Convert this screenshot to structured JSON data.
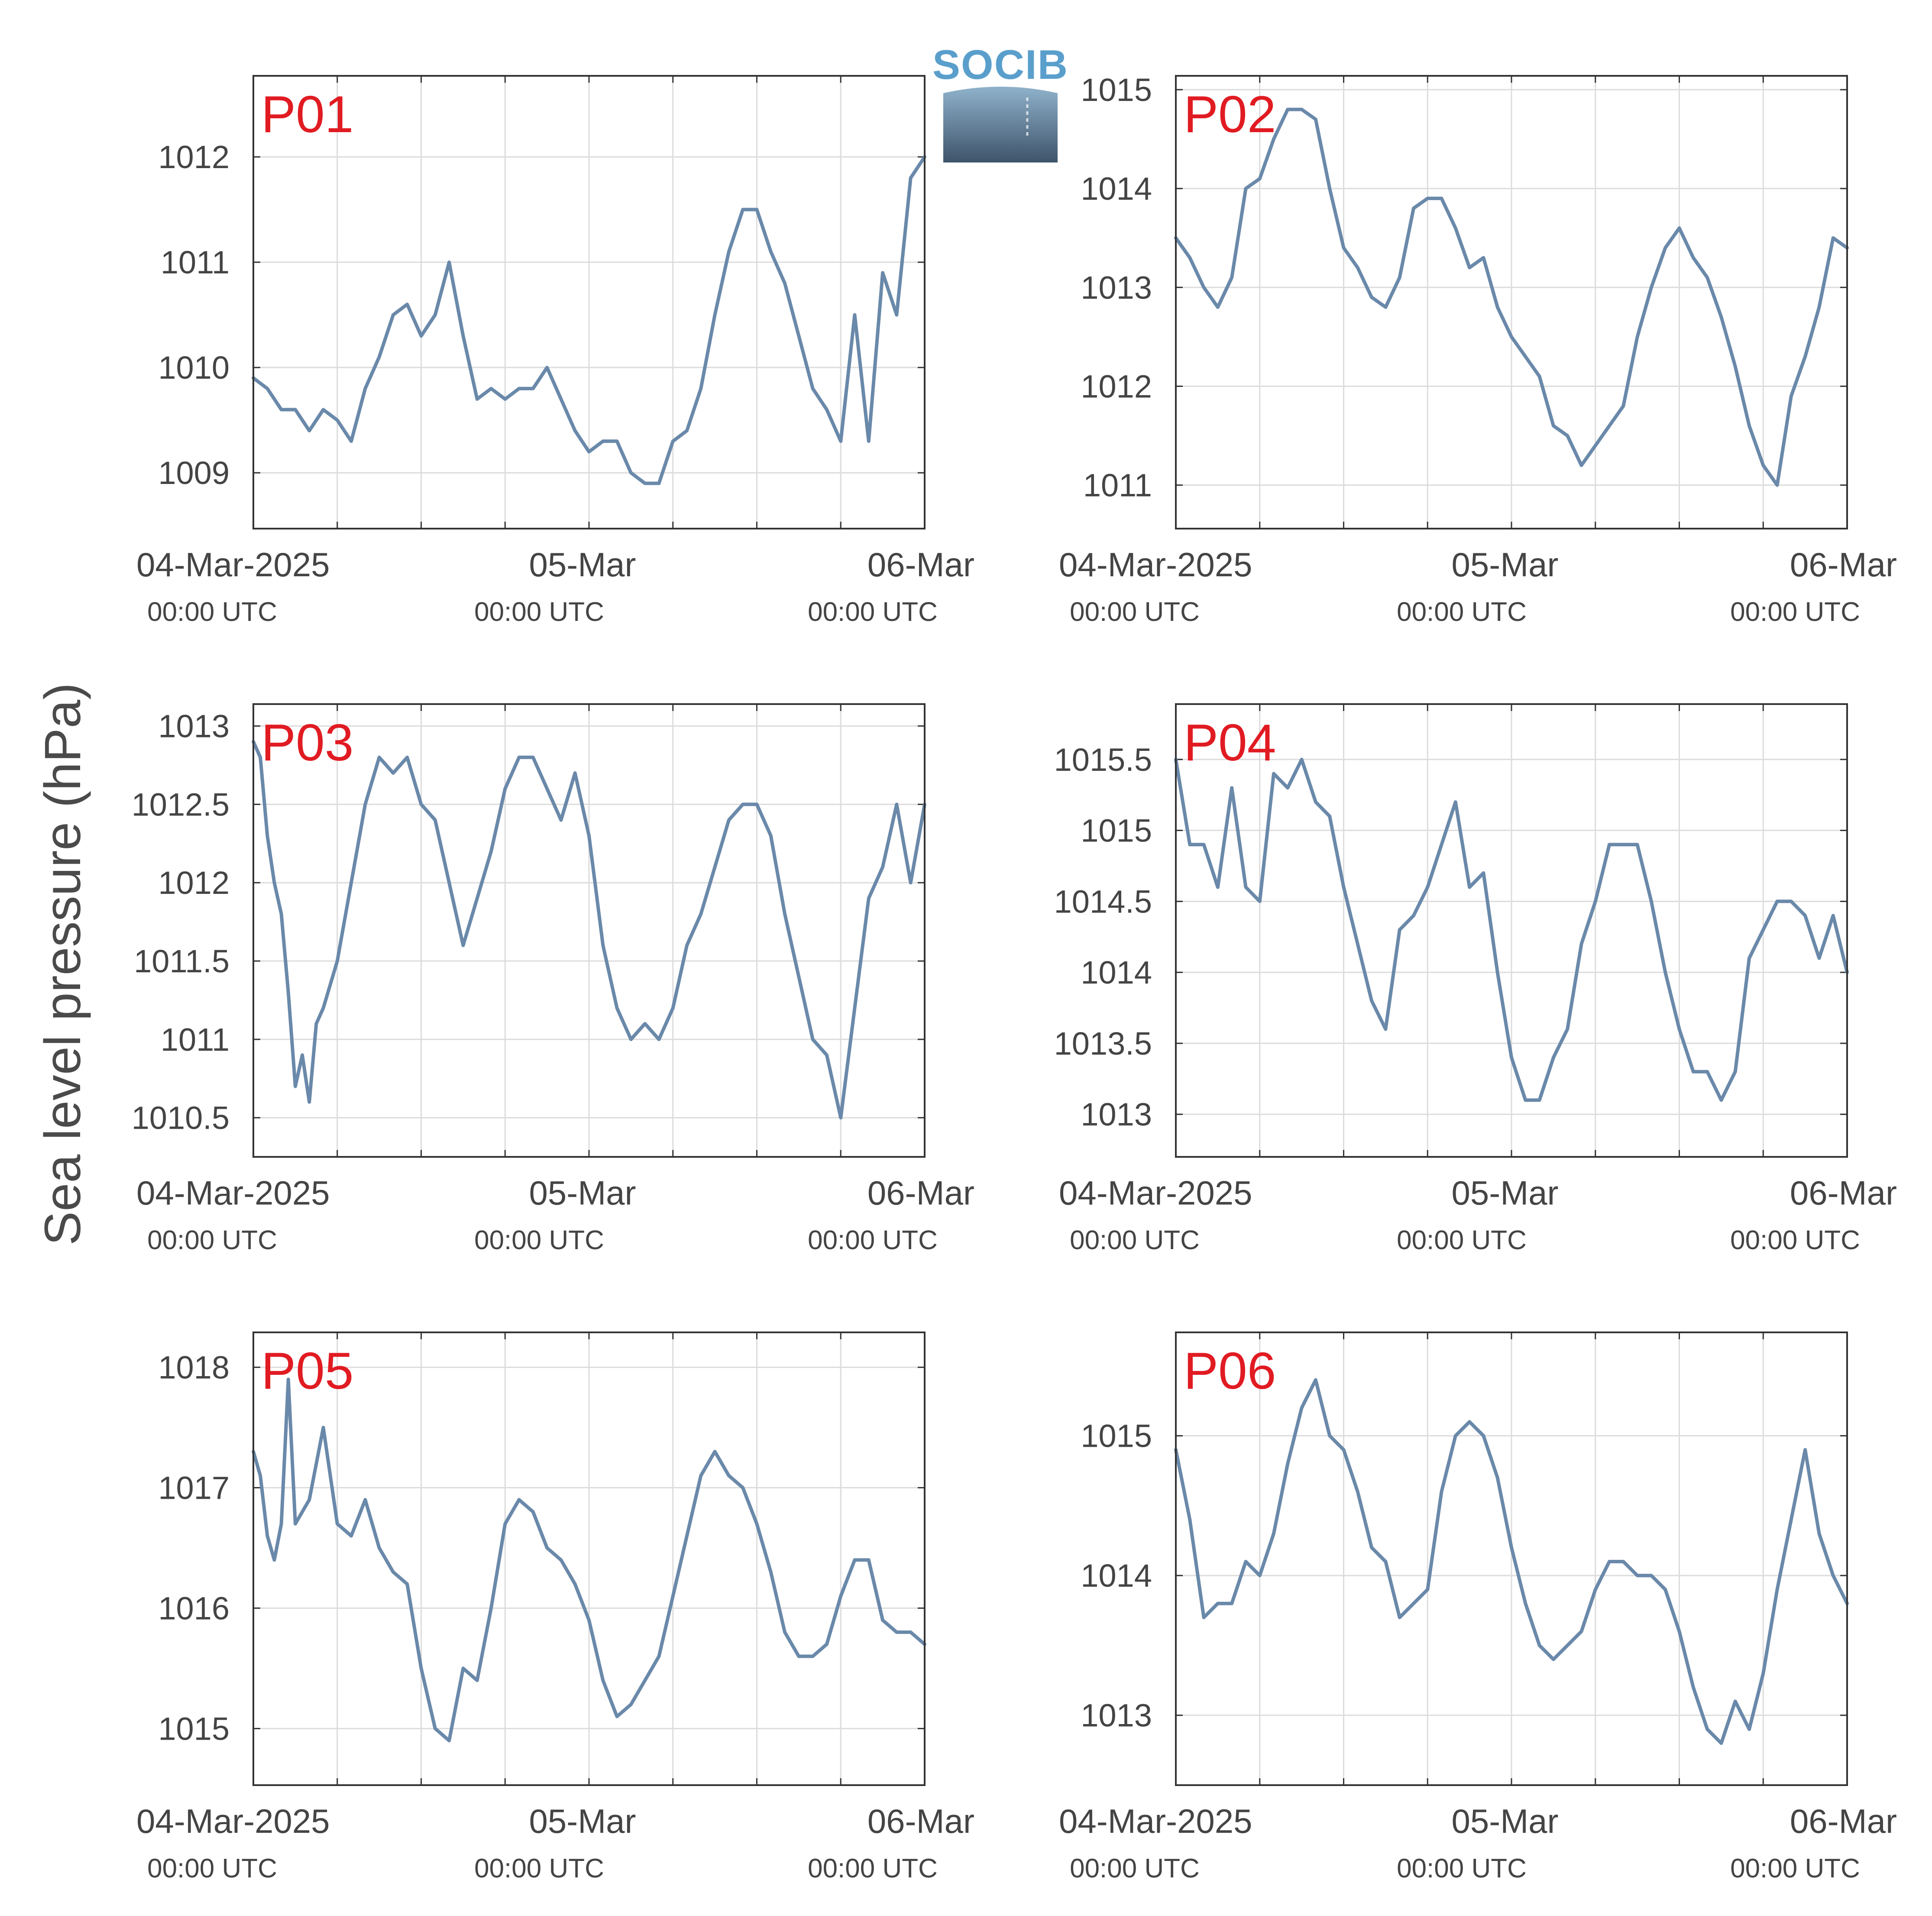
{
  "figure": {
    "ylabel": "Sea level pressure (hPa)",
    "logo_text": "SOCIB",
    "line_color": "#6a89aa",
    "panel_label_color": "#e11b22",
    "grid": true
  },
  "chart_data": [
    {
      "type": "line",
      "title": "P01",
      "x_unit": "hours since 04-Mar-2025 00:00 UTC",
      "xlim": [
        0,
        48
      ],
      "x_ticks": [
        {
          "date": "04-Mar-2025",
          "time": "00:00 UTC"
        },
        {
          "date": "05-Mar",
          "time": "00:00 UTC"
        },
        {
          "date": "06-Mar",
          "time": "00:00 UTC"
        }
      ],
      "ylim": [
        1008.47,
        1012.77
      ],
      "yticks": [
        1009,
        1010,
        1011,
        1012
      ],
      "ytick_labels": [
        "1009",
        "1010",
        "1011",
        "1012"
      ],
      "series": [
        {
          "x": [
            0,
            1,
            2,
            3,
            4,
            5,
            6,
            7,
            8,
            9,
            10,
            11,
            12,
            13,
            14,
            15,
            16,
            17,
            18,
            19,
            20,
            21,
            22,
            23,
            24,
            25,
            26,
            27,
            28,
            29,
            30,
            31,
            32,
            33,
            34,
            35,
            36,
            37,
            38,
            39,
            40,
            41,
            42,
            43,
            44,
            45,
            46,
            47,
            48
          ],
          "values": [
            1009.9,
            1009.8,
            1009.6,
            1009.6,
            1009.4,
            1009.6,
            1009.5,
            1009.3,
            1009.8,
            1010.1,
            1010.5,
            1010.6,
            1010.3,
            1010.5,
            1011.0,
            1010.3,
            1009.7,
            1009.8,
            1009.7,
            1009.8,
            1009.8,
            1010.0,
            1009.7,
            1009.4,
            1009.2,
            1009.3,
            1009.3,
            1009.0,
            1008.9,
            1008.9,
            1009.3,
            1009.4,
            1009.8,
            1010.5,
            1011.1,
            1011.5,
            1011.5,
            1011.1,
            1010.8,
            1010.3,
            1009.8,
            1009.6,
            1009.3,
            1010.5,
            1009.3,
            1010.9,
            1010.5,
            1011.8,
            1012.0
          ]
        }
      ]
    },
    {
      "type": "line",
      "title": "P02",
      "x_unit": "hours since 04-Mar-2025 00:00 UTC",
      "xlim": [
        0,
        48
      ],
      "x_ticks": [
        {
          "date": "04-Mar-2025",
          "time": "00:00 UTC"
        },
        {
          "date": "05-Mar",
          "time": "00:00 UTC"
        },
        {
          "date": "06-Mar",
          "time": "00:00 UTC"
        }
      ],
      "ylim": [
        1010.56,
        1015.14
      ],
      "yticks": [
        1011,
        1012,
        1013,
        1014,
        1015
      ],
      "ytick_labels": [
        "1011",
        "1012",
        "1013",
        "1014",
        "1015"
      ],
      "series": [
        {
          "x": [
            0,
            1,
            2,
            3,
            4,
            5,
            6,
            7,
            8,
            9,
            10,
            11,
            12,
            13,
            14,
            15,
            16,
            17,
            18,
            19,
            20,
            21,
            22,
            23,
            24,
            25,
            26,
            27,
            28,
            29,
            30,
            31,
            32,
            33,
            34,
            35,
            36,
            37,
            38,
            39,
            40,
            41,
            42,
            43,
            44,
            45,
            46,
            47,
            48
          ],
          "values": [
            1013.5,
            1013.3,
            1013.0,
            1012.8,
            1013.1,
            1014.0,
            1014.1,
            1014.5,
            1014.8,
            1014.8,
            1014.7,
            1014.0,
            1013.4,
            1013.2,
            1012.9,
            1012.8,
            1013.1,
            1013.8,
            1013.9,
            1013.9,
            1013.6,
            1013.2,
            1013.3,
            1012.8,
            1012.5,
            1012.3,
            1012.1,
            1011.6,
            1011.5,
            1011.2,
            1011.4,
            1011.6,
            1011.8,
            1012.5,
            1013.0,
            1013.4,
            1013.6,
            1013.3,
            1013.1,
            1012.7,
            1012.2,
            1011.6,
            1011.2,
            1011.0,
            1011.9,
            1012.3,
            1012.8,
            1013.5,
            1013.4
          ]
        }
      ]
    },
    {
      "type": "line",
      "title": "P03",
      "x_unit": "hours since 04-Mar-2025 00:00 UTC",
      "xlim": [
        0,
        48
      ],
      "x_ticks": [
        {
          "date": "04-Mar-2025",
          "time": "00:00 UTC"
        },
        {
          "date": "05-Mar",
          "time": "00:00 UTC"
        },
        {
          "date": "06-Mar",
          "time": "00:00 UTC"
        }
      ],
      "ylim": [
        1010.25,
        1013.14
      ],
      "yticks": [
        1010.5,
        1011,
        1011.5,
        1012,
        1012.5,
        1013
      ],
      "ytick_labels": [
        "1010.5",
        "1011",
        "1011.5",
        "1012",
        "1012.5",
        "1013"
      ],
      "series": [
        {
          "x": [
            0,
            0.5,
            1,
            1.5,
            2,
            2.5,
            3,
            3.5,
            4,
            4.5,
            5,
            6,
            7,
            8,
            9,
            10,
            11,
            12,
            13,
            14,
            15,
            16,
            17,
            18,
            19,
            20,
            21,
            22,
            23,
            24,
            25,
            26,
            27,
            28,
            29,
            30,
            31,
            32,
            33,
            34,
            35,
            36,
            37,
            38,
            39,
            40,
            41,
            42,
            43,
            44,
            45,
            46,
            47,
            48
          ],
          "values": [
            1012.9,
            1012.8,
            1012.3,
            1012.0,
            1011.8,
            1011.3,
            1010.7,
            1010.9,
            1010.6,
            1011.1,
            1011.2,
            1011.5,
            1012.0,
            1012.5,
            1012.8,
            1012.7,
            1012.8,
            1012.5,
            1012.4,
            1012.0,
            1011.6,
            1011.9,
            1012.2,
            1012.6,
            1012.8,
            1012.8,
            1012.6,
            1012.4,
            1012.7,
            1012.3,
            1011.6,
            1011.2,
            1011.0,
            1011.1,
            1011.0,
            1011.2,
            1011.6,
            1011.8,
            1012.1,
            1012.4,
            1012.5,
            1012.5,
            1012.3,
            1011.8,
            1011.4,
            1011.0,
            1010.9,
            1010.5,
            1011.2,
            1011.9,
            1012.1,
            1012.5,
            1012.0,
            1012.5
          ]
        }
      ]
    },
    {
      "type": "line",
      "title": "P04",
      "x_unit": "hours since 04-Mar-2025 00:00 UTC",
      "xlim": [
        0,
        48
      ],
      "x_ticks": [
        {
          "date": "04-Mar-2025",
          "time": "00:00 UTC"
        },
        {
          "date": "05-Mar",
          "time": "00:00 UTC"
        },
        {
          "date": "06-Mar",
          "time": "00:00 UTC"
        }
      ],
      "ylim": [
        1012.7,
        1015.89
      ],
      "yticks": [
        1013,
        1013.5,
        1014,
        1014.5,
        1015,
        1015.5
      ],
      "ytick_labels": [
        "1013",
        "1013.5",
        "1014",
        "1014.5",
        "1015",
        "1015.5"
      ],
      "series": [
        {
          "x": [
            0,
            1,
            2,
            3,
            4,
            5,
            6,
            7,
            8,
            9,
            10,
            11,
            12,
            13,
            14,
            15,
            16,
            17,
            18,
            19,
            20,
            21,
            22,
            23,
            24,
            25,
            26,
            27,
            28,
            29,
            30,
            31,
            32,
            33,
            34,
            35,
            36,
            37,
            38,
            39,
            40,
            41,
            42,
            43,
            44,
            45,
            46,
            47,
            48
          ],
          "values": [
            1015.5,
            1014.9,
            1014.9,
            1014.6,
            1015.3,
            1014.6,
            1014.5,
            1015.4,
            1015.3,
            1015.5,
            1015.2,
            1015.1,
            1014.6,
            1014.2,
            1013.8,
            1013.6,
            1014.3,
            1014.4,
            1014.6,
            1014.9,
            1015.2,
            1014.6,
            1014.7,
            1014.0,
            1013.4,
            1013.1,
            1013.1,
            1013.4,
            1013.6,
            1014.2,
            1014.5,
            1014.9,
            1014.9,
            1014.9,
            1014.5,
            1014.0,
            1013.6,
            1013.3,
            1013.3,
            1013.1,
            1013.3,
            1014.1,
            1014.3,
            1014.5,
            1014.5,
            1014.4,
            1014.1,
            1014.4,
            1014.0
          ]
        }
      ]
    },
    {
      "type": "line",
      "title": "P05",
      "x_unit": "hours since 04-Mar-2025 00:00 UTC",
      "xlim": [
        0,
        48
      ],
      "x_ticks": [
        {
          "date": "04-Mar-2025",
          "time": "00:00 UTC"
        },
        {
          "date": "05-Mar",
          "time": "00:00 UTC"
        },
        {
          "date": "06-Mar",
          "time": "00:00 UTC"
        }
      ],
      "ylim": [
        1014.53,
        1018.29
      ],
      "yticks": [
        1015,
        1016,
        1017,
        1018
      ],
      "ytick_labels": [
        "1015",
        "1016",
        "1017",
        "1018"
      ],
      "series": [
        {
          "x": [
            0,
            0.5,
            1,
            1.5,
            2,
            2.5,
            3,
            4,
            5,
            6,
            7,
            8,
            9,
            10,
            11,
            12,
            13,
            14,
            15,
            16,
            17,
            18,
            19,
            20,
            21,
            22,
            23,
            24,
            25,
            26,
            27,
            28,
            29,
            30,
            31,
            32,
            33,
            34,
            35,
            36,
            37,
            38,
            39,
            40,
            41,
            42,
            43,
            44,
            45,
            46,
            47,
            48
          ],
          "values": [
            1017.3,
            1017.1,
            1016.6,
            1016.4,
            1016.7,
            1017.9,
            1016.7,
            1016.9,
            1017.5,
            1016.7,
            1016.6,
            1016.9,
            1016.5,
            1016.3,
            1016.2,
            1015.5,
            1015.0,
            1014.9,
            1015.5,
            1015.4,
            1016.0,
            1016.7,
            1016.9,
            1016.8,
            1016.5,
            1016.4,
            1016.2,
            1015.9,
            1015.4,
            1015.1,
            1015.2,
            1015.4,
            1015.6,
            1016.1,
            1016.6,
            1017.1,
            1017.3,
            1017.1,
            1017.0,
            1016.7,
            1016.3,
            1015.8,
            1015.6,
            1015.6,
            1015.7,
            1016.1,
            1016.4,
            1016.4,
            1015.9,
            1015.8,
            1015.8,
            1015.7
          ]
        }
      ]
    },
    {
      "type": "line",
      "title": "P06",
      "x_unit": "hours since 04-Mar-2025 00:00 UTC",
      "xlim": [
        0,
        48
      ],
      "x_ticks": [
        {
          "date": "04-Mar-2025",
          "time": "00:00 UTC"
        },
        {
          "date": "05-Mar",
          "time": "00:00 UTC"
        },
        {
          "date": "06-Mar",
          "time": "00:00 UTC"
        }
      ],
      "ylim": [
        1012.5,
        1015.74
      ],
      "yticks": [
        1013,
        1014,
        1015
      ],
      "ytick_labels": [
        "1013",
        "1014",
        "1015"
      ],
      "series": [
        {
          "x": [
            0,
            1,
            2,
            3,
            4,
            5,
            6,
            7,
            8,
            9,
            10,
            11,
            12,
            13,
            14,
            15,
            16,
            17,
            18,
            19,
            20,
            21,
            22,
            23,
            24,
            25,
            26,
            27,
            28,
            29,
            30,
            31,
            32,
            33,
            34,
            35,
            36,
            37,
            38,
            39,
            40,
            41,
            42,
            43,
            44,
            45,
            46,
            47,
            48
          ],
          "values": [
            1014.9,
            1014.4,
            1013.7,
            1013.8,
            1013.8,
            1014.1,
            1014.0,
            1014.3,
            1014.8,
            1015.2,
            1015.4,
            1015.0,
            1014.9,
            1014.6,
            1014.2,
            1014.1,
            1013.7,
            1013.8,
            1013.9,
            1014.6,
            1015.0,
            1015.1,
            1015.0,
            1014.7,
            1014.2,
            1013.8,
            1013.5,
            1013.4,
            1013.5,
            1013.6,
            1013.9,
            1014.1,
            1014.1,
            1014.0,
            1014.0,
            1013.9,
            1013.6,
            1013.2,
            1012.9,
            1012.8,
            1013.1,
            1012.9,
            1013.3,
            1013.9,
            1014.4,
            1014.9,
            1014.3,
            1014.0,
            1013.8
          ]
        }
      ]
    }
  ]
}
